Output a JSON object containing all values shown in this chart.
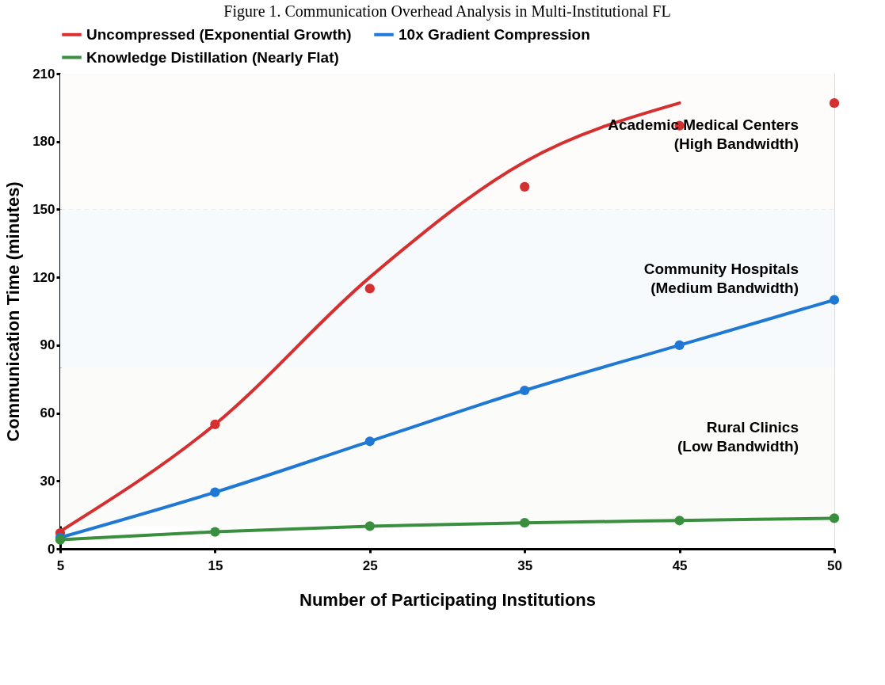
{
  "chart_data": {
    "type": "line",
    "title": "Figure 1. Communication Overhead Analysis in Multi-Institutional FL",
    "xlabel": "Number of Participating Institutions",
    "ylabel": "Communication Time (minutes)",
    "categories": [
      "5",
      "15",
      "25",
      "35",
      "45",
      "50"
    ],
    "ylim": [
      0,
      210
    ],
    "yticks": [
      0,
      30,
      60,
      90,
      120,
      150,
      180,
      210
    ],
    "grid": "y",
    "legend": "top",
    "marker": "circle",
    "series": [
      {
        "name": "Uncompressed (Exponential Growth)",
        "type": "scatter",
        "color": "#d62f2f",
        "values": [
          7,
          55,
          115,
          160,
          187,
          197
        ]
      },
      {
        "name": "10x Gradient Compression",
        "color": "#1e78d4",
        "values": [
          5,
          25,
          47.5,
          70,
          90,
          110
        ]
      },
      {
        "name": "Knowledge Distillation (Nearly Flat)",
        "color": "#3a8f3f",
        "values": [
          4,
          7.5,
          10,
          11.5,
          12.5,
          13.5
        ]
      },
      {
        "color": "#d62f2f",
        "marker": "none",
        "values": [
          7.7,
          55,
          120,
          171,
          197,
          null
        ]
      }
    ],
    "bands": [
      {
        "axis": "y",
        "from": 150,
        "to": 210,
        "color": "#fdfcfa",
        "label": "Academic Medical Centers\n(High Bandwidth)"
      },
      {
        "axis": "y",
        "from": 80,
        "to": 150,
        "color": "#f6fafc",
        "label": "Community Hospitals\n(Medium Bandwidth)"
      },
      {
        "axis": "y",
        "from": 10,
        "to": 80,
        "color": "#fbfbf9",
        "label": "Rural Clinics\n(Low Bandwidth)"
      }
    ]
  }
}
